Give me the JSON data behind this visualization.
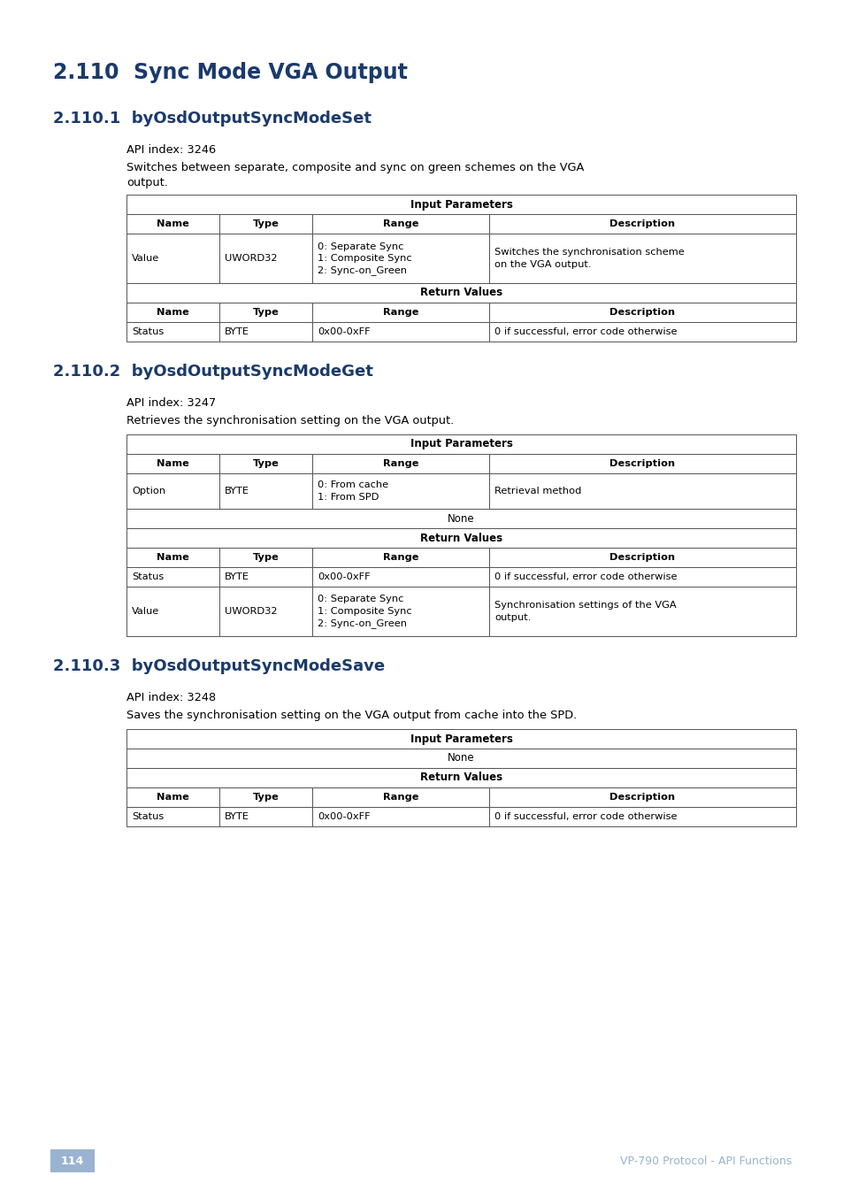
{
  "title_main": "2.110  Sync Mode VGA Output",
  "title_color": "#1b3a6b",
  "section1_title": "2.110.1  byOsdOutputSyncModeSet",
  "section1_api": "API index: 3246",
  "section1_desc1": "Switches between separate, composite and sync on green schemes on the VGA",
  "section1_desc2": "output.",
  "section2_title": "2.110.2  byOsdOutputSyncModeGet",
  "section2_api": "API index: 3247",
  "section2_desc": "Retrieves the synchronisation setting on the VGA output.",
  "section3_title": "2.110.3  byOsdOutputSyncModeSave",
  "section3_api": "API index: 3248",
  "section3_desc": "Saves the synchronisation setting on the VGA output from cache into the SPD.",
  "footer_page": "114",
  "footer_text": "VP-790 Protocol - API Functions",
  "footer_page_bg": "#9ab3d0",
  "footer_text_color": "#9ab3d0",
  "bg_color": "#ffffff",
  "section_color": "#1b3a6b",
  "text_color": "#000000",
  "table_border_color": "#555555"
}
